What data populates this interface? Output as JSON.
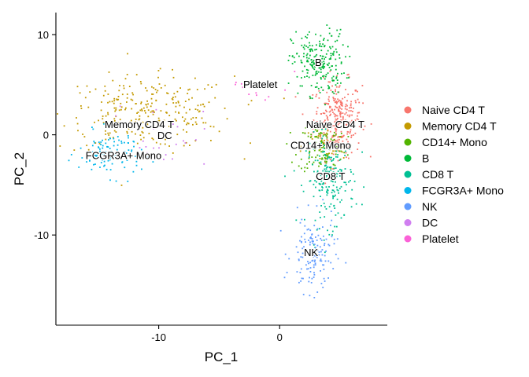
{
  "chart_data": {
    "type": "scatter",
    "title": "",
    "xlabel": "PC_1",
    "ylabel": "PC_2",
    "xlim": [
      -18.5,
      8.9
    ],
    "ylim": [
      -19,
      12.2
    ],
    "xticks": [
      -10,
      0
    ],
    "xtick_labels": [
      "-10",
      "0"
    ],
    "yticks": [
      10,
      0,
      -10
    ],
    "ytick_labels": [
      "10",
      "0",
      "-10"
    ],
    "grid": false,
    "legend_position": "right",
    "series": [
      {
        "name": "Naive CD4 T",
        "color": "#F8766D",
        "clusters": [
          {
            "cx": 4.8,
            "cy": 1.6,
            "sx": 1.0,
            "sy": 1.9,
            "n": 300
          }
        ]
      },
      {
        "name": "Memory CD4 T",
        "color": "#C49A00",
        "clusters": [
          {
            "cx": -11.0,
            "cy": 2.2,
            "sx": 3.6,
            "sy": 1.8,
            "n": 280
          },
          {
            "cx": 3.6,
            "cy": -1.2,
            "sx": 0.9,
            "sy": 1.2,
            "n": 50
          }
        ]
      },
      {
        "name": "CD14+ Mono",
        "color": "#53B400",
        "clusters": [
          {
            "cx": 3.5,
            "cy": -1.2,
            "sx": 1.0,
            "sy": 1.3,
            "n": 120
          }
        ]
      },
      {
        "name": "B",
        "color": "#00B938",
        "clusters": [
          {
            "cx": 3.2,
            "cy": 7.2,
            "sx": 1.1,
            "sy": 1.6,
            "n": 220
          }
        ]
      },
      {
        "name": "CD8 T",
        "color": "#00C094",
        "clusters": [
          {
            "cx": 4.2,
            "cy": -4.5,
            "sx": 1.0,
            "sy": 2.3,
            "n": 200
          }
        ]
      },
      {
        "name": "FCGR3A+ Mono",
        "color": "#00B6EB",
        "clusters": [
          {
            "cx": -14.0,
            "cy": -1.9,
            "sx": 1.3,
            "sy": 1.1,
            "n": 110
          }
        ]
      },
      {
        "name": "NK",
        "color": "#619CFF",
        "clusters": [
          {
            "cx": 2.8,
            "cy": -12.0,
            "sx": 0.9,
            "sy": 1.9,
            "n": 140
          }
        ]
      },
      {
        "name": "DC",
        "color": "#D07EF0",
        "clusters": [
          {
            "cx": -10.0,
            "cy": 0.0,
            "sx": 2.0,
            "sy": 1.6,
            "n": 25
          }
        ]
      },
      {
        "name": "Platelet",
        "color": "#FB61D7",
        "clusters": [
          {
            "cx": -1.5,
            "cy": 5.0,
            "sx": 1.3,
            "sy": 1.1,
            "n": 14
          }
        ]
      }
    ],
    "cluster_labels": [
      {
        "text": "B",
        "x": 3.2,
        "y": 7.2
      },
      {
        "text": "Platelet",
        "x": -1.6,
        "y": 5.0
      },
      {
        "text": "Memory CD4 T",
        "x": -11.6,
        "y": 1.0
      },
      {
        "text": "DC",
        "x": -9.5,
        "y": -0.1
      },
      {
        "text": "Naive CD4 T",
        "x": 4.6,
        "y": 1.0
      },
      {
        "text": "CD14+ Mono",
        "x": 3.4,
        "y": -1.1
      },
      {
        "text": "FCGR3A+ Mono",
        "x": -12.9,
        "y": -2.1
      },
      {
        "text": "CD8 T",
        "x": 4.2,
        "y": -4.2
      },
      {
        "text": "NK",
        "x": 2.6,
        "y": -11.8
      }
    ]
  }
}
